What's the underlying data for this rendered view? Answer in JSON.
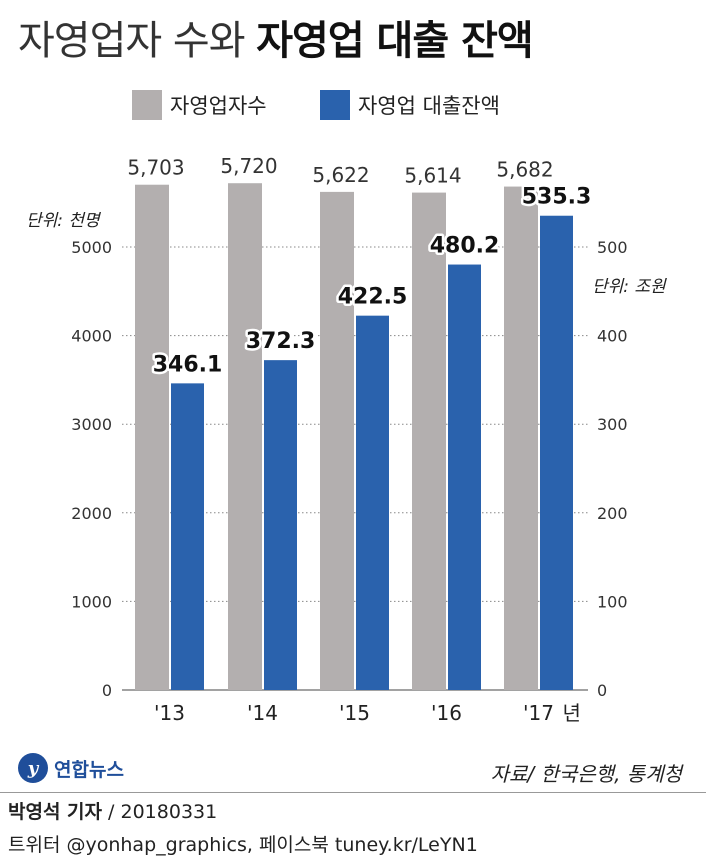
{
  "title": {
    "light": "자영업자 수와",
    "bold": "자영업 대출 잔액"
  },
  "legend": [
    {
      "label": "자영업자수",
      "color": "#b3afaf"
    },
    {
      "label": "자영업 대출잔액",
      "color": "#2a62ad"
    }
  ],
  "left_axis_unit": "단위: 천명",
  "right_axis_unit": "단위: 조원",
  "year_suffix": "년",
  "source": "자료/ 한국은행, 통계청",
  "logo_text": "연합뉴스",
  "credit": {
    "author": "박영석 기자",
    "rest": " / 20180331"
  },
  "social": "트위터 @yonhap_graphics, 페이스북 tuney.kr/LeYN1",
  "chart_data": {
    "type": "bar",
    "categories": [
      "'13",
      "'14",
      "'15",
      "'16",
      "'17"
    ],
    "series": [
      {
        "name": "자영업자수",
        "axis": "left",
        "color": "#b3afaf",
        "values": [
          5703,
          5720,
          5622,
          5614,
          5682
        ],
        "labels": [
          "5,703",
          "5,720",
          "5,622",
          "5,614",
          "5,682"
        ]
      },
      {
        "name": "자영업 대출잔액",
        "axis": "right",
        "color": "#2a62ad",
        "values": [
          346.1,
          372.3,
          422.5,
          480.2,
          535.3
        ],
        "labels": [
          "346.1",
          "372.3",
          "422.5",
          "480.2",
          "535.3"
        ]
      }
    ],
    "y_left": {
      "ylim": [
        0,
        5700
      ],
      "ticks": [
        0,
        1000,
        2000,
        3000,
        4000,
        5000
      ]
    },
    "y_right": {
      "ylim": [
        0,
        570
      ],
      "ticks": [
        0,
        100,
        200,
        300,
        400,
        500
      ]
    },
    "grid": true
  }
}
